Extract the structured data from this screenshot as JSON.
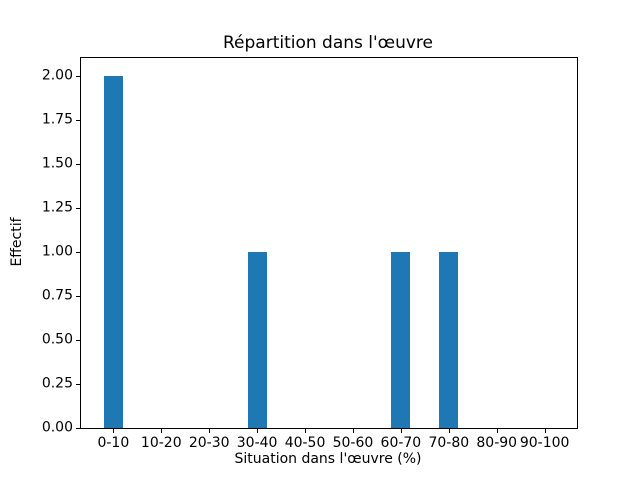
{
  "chart_data": {
    "type": "bar",
    "title": "Répartition dans l'œuvre",
    "xlabel": "Situation dans l'œuvre (%)",
    "ylabel": "Effectif",
    "categories": [
      "0-10",
      "10-20",
      "20-30",
      "30-40",
      "40-50",
      "50-60",
      "60-70",
      "70-80",
      "80-90",
      "90-100"
    ],
    "values": [
      2,
      0,
      0,
      1,
      0,
      0,
      1,
      1,
      0,
      0
    ],
    "ytick_labels": [
      "0.00",
      "0.25",
      "0.50",
      "0.75",
      "1.00",
      "1.25",
      "1.50",
      "1.75",
      "2.00"
    ],
    "ytick_values": [
      0,
      0.25,
      0.5,
      0.75,
      1.0,
      1.25,
      1.5,
      1.75,
      2.0
    ],
    "ylim": [
      0,
      2.1
    ],
    "xlim": [
      -0.675,
      9.675
    ],
    "bar_width": 0.4,
    "bar_color": "#1f77b4",
    "axes_color": "#000000",
    "background_color": "#ffffff",
    "grid": false,
    "legend_position": "none"
  }
}
